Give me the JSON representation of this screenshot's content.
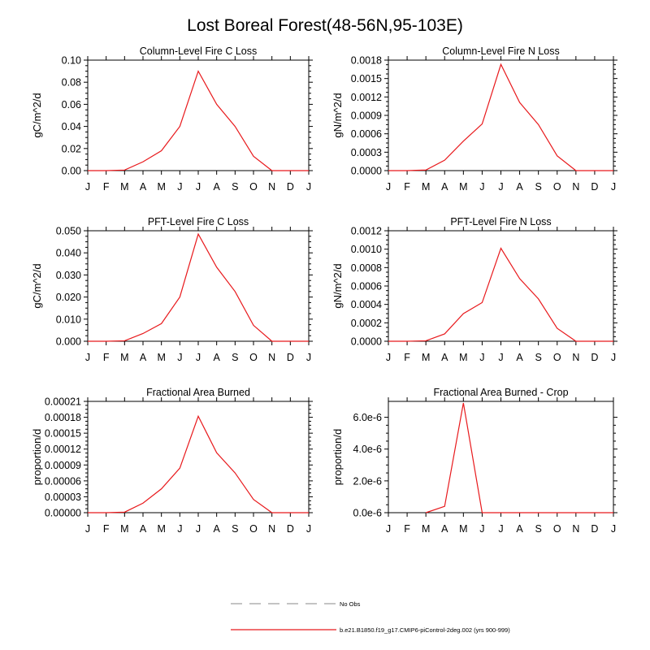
{
  "title": "Lost Boreal Forest(48-56N,95-103E)",
  "months": [
    "J",
    "F",
    "M",
    "A",
    "M",
    "J",
    "J",
    "A",
    "S",
    "O",
    "N",
    "D",
    "J"
  ],
  "line_color": "#e8191c",
  "chart_data": [
    {
      "type": "line",
      "title": "Column-Level Fire C Loss",
      "ylabel": "gC/m^2/d",
      "ylim": [
        0,
        0.1
      ],
      "yticks": [
        0,
        0.02,
        0.04,
        0.06,
        0.08,
        0.1
      ],
      "ytick_labels": [
        "0.00",
        "0.02",
        "0.04",
        "0.06",
        "0.08",
        "0.10"
      ],
      "series": [
        {
          "values": [
            0,
            0,
            0.0005,
            0.008,
            0.018,
            0.04,
            0.09,
            0.06,
            0.04,
            0.013,
            0,
            0,
            0
          ]
        }
      ]
    },
    {
      "type": "line",
      "title": "Column-Level Fire N Loss",
      "ylabel": "gN/m^2/d",
      "ylim": [
        0,
        0.0018
      ],
      "yticks": [
        0,
        0.0003,
        0.0006,
        0.0009,
        0.0012,
        0.0015,
        0.0018
      ],
      "ytick_labels": [
        "0.0000",
        "0.0003",
        "0.0006",
        "0.0009",
        "0.0012",
        "0.0015",
        "0.0018"
      ],
      "series": [
        {
          "values": [
            0,
            0,
            1e-05,
            0.00017,
            0.00048,
            0.00076,
            0.00173,
            0.00111,
            0.00075,
            0.00024,
            0,
            0,
            0
          ]
        }
      ]
    },
    {
      "type": "line",
      "title": "PFT-Level Fire C Loss",
      "ylabel": "gC/m^2/d",
      "ylim": [
        0,
        0.05
      ],
      "yticks": [
        0,
        0.01,
        0.02,
        0.03,
        0.04,
        0.05
      ],
      "ytick_labels": [
        "0.000",
        "0.010",
        "0.020",
        "0.030",
        "0.040",
        "0.050"
      ],
      "series": [
        {
          "values": [
            0,
            0,
            0.0002,
            0.0035,
            0.008,
            0.02,
            0.0485,
            0.0335,
            0.0225,
            0.0072,
            0,
            0,
            0
          ]
        }
      ]
    },
    {
      "type": "line",
      "title": "PFT-Level Fire N Loss",
      "ylabel": "gN/m^2/d",
      "ylim": [
        0,
        0.0012
      ],
      "yticks": [
        0,
        0.0002,
        0.0004,
        0.0006,
        0.0008,
        0.001,
        0.0012
      ],
      "ytick_labels": [
        "0.0000",
        "0.0002",
        "0.0004",
        "0.0006",
        "0.0008",
        "0.0010",
        "0.0012"
      ],
      "series": [
        {
          "values": [
            0,
            0,
            5e-06,
            8e-05,
            0.0003,
            0.00042,
            0.00101,
            0.00068,
            0.00046,
            0.00014,
            0,
            0,
            0
          ]
        }
      ]
    },
    {
      "type": "line",
      "title": "Fractional Area Burned",
      "ylabel": "proportion/d",
      "ylim": [
        0,
        0.00021
      ],
      "yticks": [
        0,
        3e-05,
        6e-05,
        9e-05,
        0.00012,
        0.00015,
        0.00018,
        0.00021
      ],
      "ytick_labels": [
        "0.00000",
        "0.00003",
        "0.00006",
        "0.00009",
        "0.00012",
        "0.00015",
        "0.00018",
        "0.00021"
      ],
      "series": [
        {
          "values": [
            0,
            0,
            1e-06,
            1.8e-05,
            4.5e-05,
            8.4e-05,
            0.000182,
            0.000113,
            7.5e-05,
            2.5e-05,
            0,
            0,
            0
          ]
        }
      ]
    },
    {
      "type": "line",
      "title": "Fractional Area Burned - Crop",
      "ylabel": "proportion/d",
      "ylim": [
        0,
        7e-06
      ],
      "yticks": [
        0,
        2e-06,
        4e-06,
        6e-06
      ],
      "ytick_labels": [
        "0.0e-6",
        "2.0e-6",
        "4.0e-6",
        "6.0e-6"
      ],
      "series": [
        {
          "values": [
            null,
            null,
            0,
            4e-07,
            6.9e-06,
            0,
            0,
            0,
            0,
            0,
            0,
            0,
            0
          ]
        }
      ]
    }
  ],
  "legend": [
    {
      "label": "No Obs",
      "style": "dashed",
      "color": "#a0a0a0"
    },
    {
      "label": "b.e21.B1850.f19_g17.CMIP6-piControl-2deg.002 (yrs 900-999)",
      "style": "solid",
      "color": "#e8191c"
    }
  ]
}
